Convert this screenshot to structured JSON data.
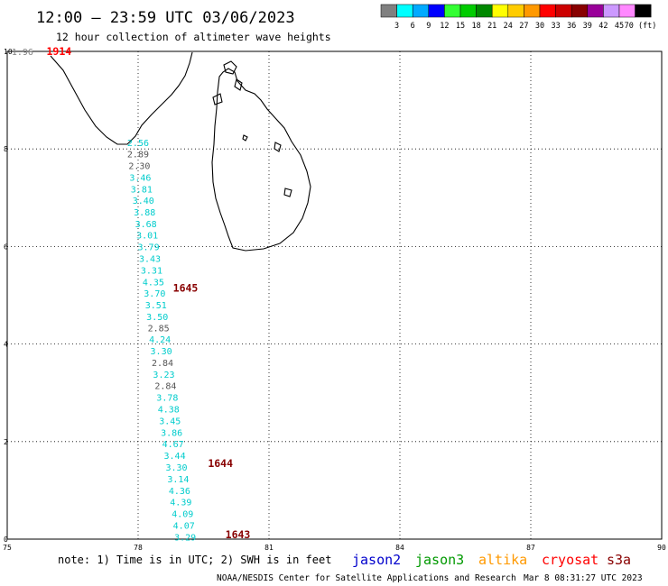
{
  "header": {
    "title": "12:00 – 23:59 UTC 03/06/2023",
    "subtitle": "12 hour collection of altimeter wave heights"
  },
  "color_scale": {
    "labels": [
      "3",
      "6",
      "9",
      "12",
      "15",
      "18",
      "21",
      "24",
      "27",
      "30",
      "33",
      "36",
      "39",
      "42",
      "45",
      "70 (ft)"
    ],
    "colors": [
      "#808080",
      "#00ffff",
      "#00aaff",
      "#0000ff",
      "#33ff33",
      "#00cc00",
      "#008800",
      "#ffff00",
      "#ffcc00",
      "#ff9900",
      "#ff0000",
      "#cc0000",
      "#880000",
      "#990099",
      "#cc99ff",
      "#ff88ff",
      "#000000"
    ]
  },
  "axes": {
    "x_ticks": [
      "75",
      "78",
      "81",
      "84",
      "87",
      "90"
    ],
    "y_ticks": [
      "0",
      "2",
      "4",
      "6",
      "8",
      "10"
    ],
    "x_range": [
      75,
      90
    ],
    "y_range": [
      0,
      10
    ],
    "grid": true
  },
  "map_data": {
    "pass_labels": [
      {
        "text": "1914",
        "lon": 75.9,
        "lat": 10.0,
        "color": "#ff0000"
      },
      {
        "text": "1645",
        "lon": 78.8,
        "lat": 5.15,
        "color": "#880000"
      },
      {
        "text": "1644",
        "lon": 79.6,
        "lat": 1.55,
        "color": "#880000"
      },
      {
        "text": "1643",
        "lon": 80.0,
        "lat": 0.0,
        "color": "#880000"
      }
    ],
    "edge_value": {
      "text": "1.96",
      "lon": 75.1,
      "lat": 10.0,
      "color": "#808080"
    },
    "track_values": [
      {
        "text": "2.56",
        "lon": 77.75,
        "lat": 8.13,
        "color": "#00cccc"
      },
      {
        "text": "2.89",
        "lon": 77.75,
        "lat": 7.9,
        "color": "#555555"
      },
      {
        "text": "2.30",
        "lon": 77.78,
        "lat": 7.66,
        "color": "#555555"
      },
      {
        "text": "3.46",
        "lon": 77.8,
        "lat": 7.42,
        "color": "#00cccc"
      },
      {
        "text": "3.81",
        "lon": 77.83,
        "lat": 7.18,
        "color": "#00cccc"
      },
      {
        "text": "3.40",
        "lon": 77.87,
        "lat": 6.95,
        "color": "#00cccc"
      },
      {
        "text": "3.88",
        "lon": 77.9,
        "lat": 6.71,
        "color": "#00cccc"
      },
      {
        "text": "3.68",
        "lon": 77.93,
        "lat": 6.47,
        "color": "#00cccc"
      },
      {
        "text": "3.01",
        "lon": 77.96,
        "lat": 6.24,
        "color": "#00cccc"
      },
      {
        "text": "3.79",
        "lon": 77.99,
        "lat": 6.0,
        "color": "#00cccc"
      },
      {
        "text": "3.43",
        "lon": 78.02,
        "lat": 5.76,
        "color": "#00cccc"
      },
      {
        "text": "3.31",
        "lon": 78.06,
        "lat": 5.52,
        "color": "#00cccc"
      },
      {
        "text": "4.35",
        "lon": 78.1,
        "lat": 5.28,
        "color": "#00cccc"
      },
      {
        "text": "3.70",
        "lon": 78.13,
        "lat": 5.05,
        "color": "#00cccc"
      },
      {
        "text": "3.51",
        "lon": 78.16,
        "lat": 4.81,
        "color": "#00cccc"
      },
      {
        "text": "3.50",
        "lon": 78.19,
        "lat": 4.57,
        "color": "#00cccc"
      },
      {
        "text": "2.85",
        "lon": 78.22,
        "lat": 4.33,
        "color": "#555555"
      },
      {
        "text": "4.24",
        "lon": 78.25,
        "lat": 4.1,
        "color": "#00cccc"
      },
      {
        "text": "3.30",
        "lon": 78.28,
        "lat": 3.86,
        "color": "#00cccc"
      },
      {
        "text": "2.84",
        "lon": 78.31,
        "lat": 3.62,
        "color": "#555555"
      },
      {
        "text": "3.23",
        "lon": 78.34,
        "lat": 3.38,
        "color": "#00cccc"
      },
      {
        "text": "2.84",
        "lon": 78.38,
        "lat": 3.15,
        "color": "#555555"
      },
      {
        "text": "3.78",
        "lon": 78.42,
        "lat": 2.91,
        "color": "#00cccc"
      },
      {
        "text": "4.38",
        "lon": 78.45,
        "lat": 2.67,
        "color": "#00cccc"
      },
      {
        "text": "3.45",
        "lon": 78.48,
        "lat": 2.43,
        "color": "#00cccc"
      },
      {
        "text": "3.86",
        "lon": 78.52,
        "lat": 2.19,
        "color": "#00cccc"
      },
      {
        "text": "4.67",
        "lon": 78.55,
        "lat": 1.96,
        "color": "#00cccc"
      },
      {
        "text": "3.44",
        "lon": 78.59,
        "lat": 1.72,
        "color": "#00cccc"
      },
      {
        "text": "3.30",
        "lon": 78.63,
        "lat": 1.48,
        "color": "#00cccc"
      },
      {
        "text": "3.14",
        "lon": 78.67,
        "lat": 1.24,
        "color": "#00cccc"
      },
      {
        "text": "4.36",
        "lon": 78.7,
        "lat": 1.0,
        "color": "#00cccc"
      },
      {
        "text": "4.39",
        "lon": 78.73,
        "lat": 0.77,
        "color": "#00cccc"
      },
      {
        "text": "4.09",
        "lon": 78.77,
        "lat": 0.53,
        "color": "#00cccc"
      },
      {
        "text": "4.07",
        "lon": 78.8,
        "lat": 0.29,
        "color": "#00cccc"
      },
      {
        "text": "3.29",
        "lon": 78.83,
        "lat": 0.05,
        "color": "#00cccc"
      }
    ]
  },
  "footer": {
    "note": "note: 1) Time is in UTC; 2) SWH is in feet",
    "satellites": [
      {
        "name": "jason2",
        "color": "#0000cc"
      },
      {
        "name": "jason3",
        "color": "#009900"
      },
      {
        "name": "altika",
        "color": "#ff9900"
      },
      {
        "name": "cryosat",
        "color": "#ff0000"
      },
      {
        "name": "s3a",
        "color": "#880000"
      }
    ],
    "credit": "NOAA/NESDIS Center for Satellite Applications and Research",
    "timestamp": "Mar  8 08:31:27 UTC 2023"
  }
}
